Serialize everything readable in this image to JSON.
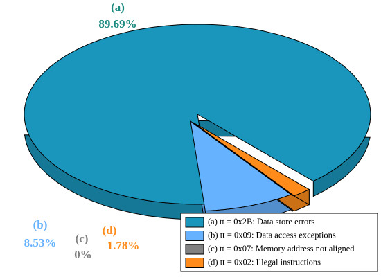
{
  "chart_data": {
    "type": "pie",
    "slice_labels": [
      "(a)",
      "(b)",
      "(c)",
      "(d)"
    ],
    "categories": [
      "(a) tt = 0x2B: Data store errors",
      "(b) tt = 0x09: Data access exceptions",
      "(c) tt = 0x07: Memory address not aligned",
      "(d) tt = 0x02: Illegal instructions"
    ],
    "values": [
      89.69,
      8.53,
      0,
      1.78
    ],
    "value_labels": [
      "89.69%",
      "8.53%",
      "0%",
      "1.78%"
    ],
    "colors": [
      "#1a96bc",
      "#66b2ff",
      "#808080",
      "#ff8c1a"
    ]
  }
}
